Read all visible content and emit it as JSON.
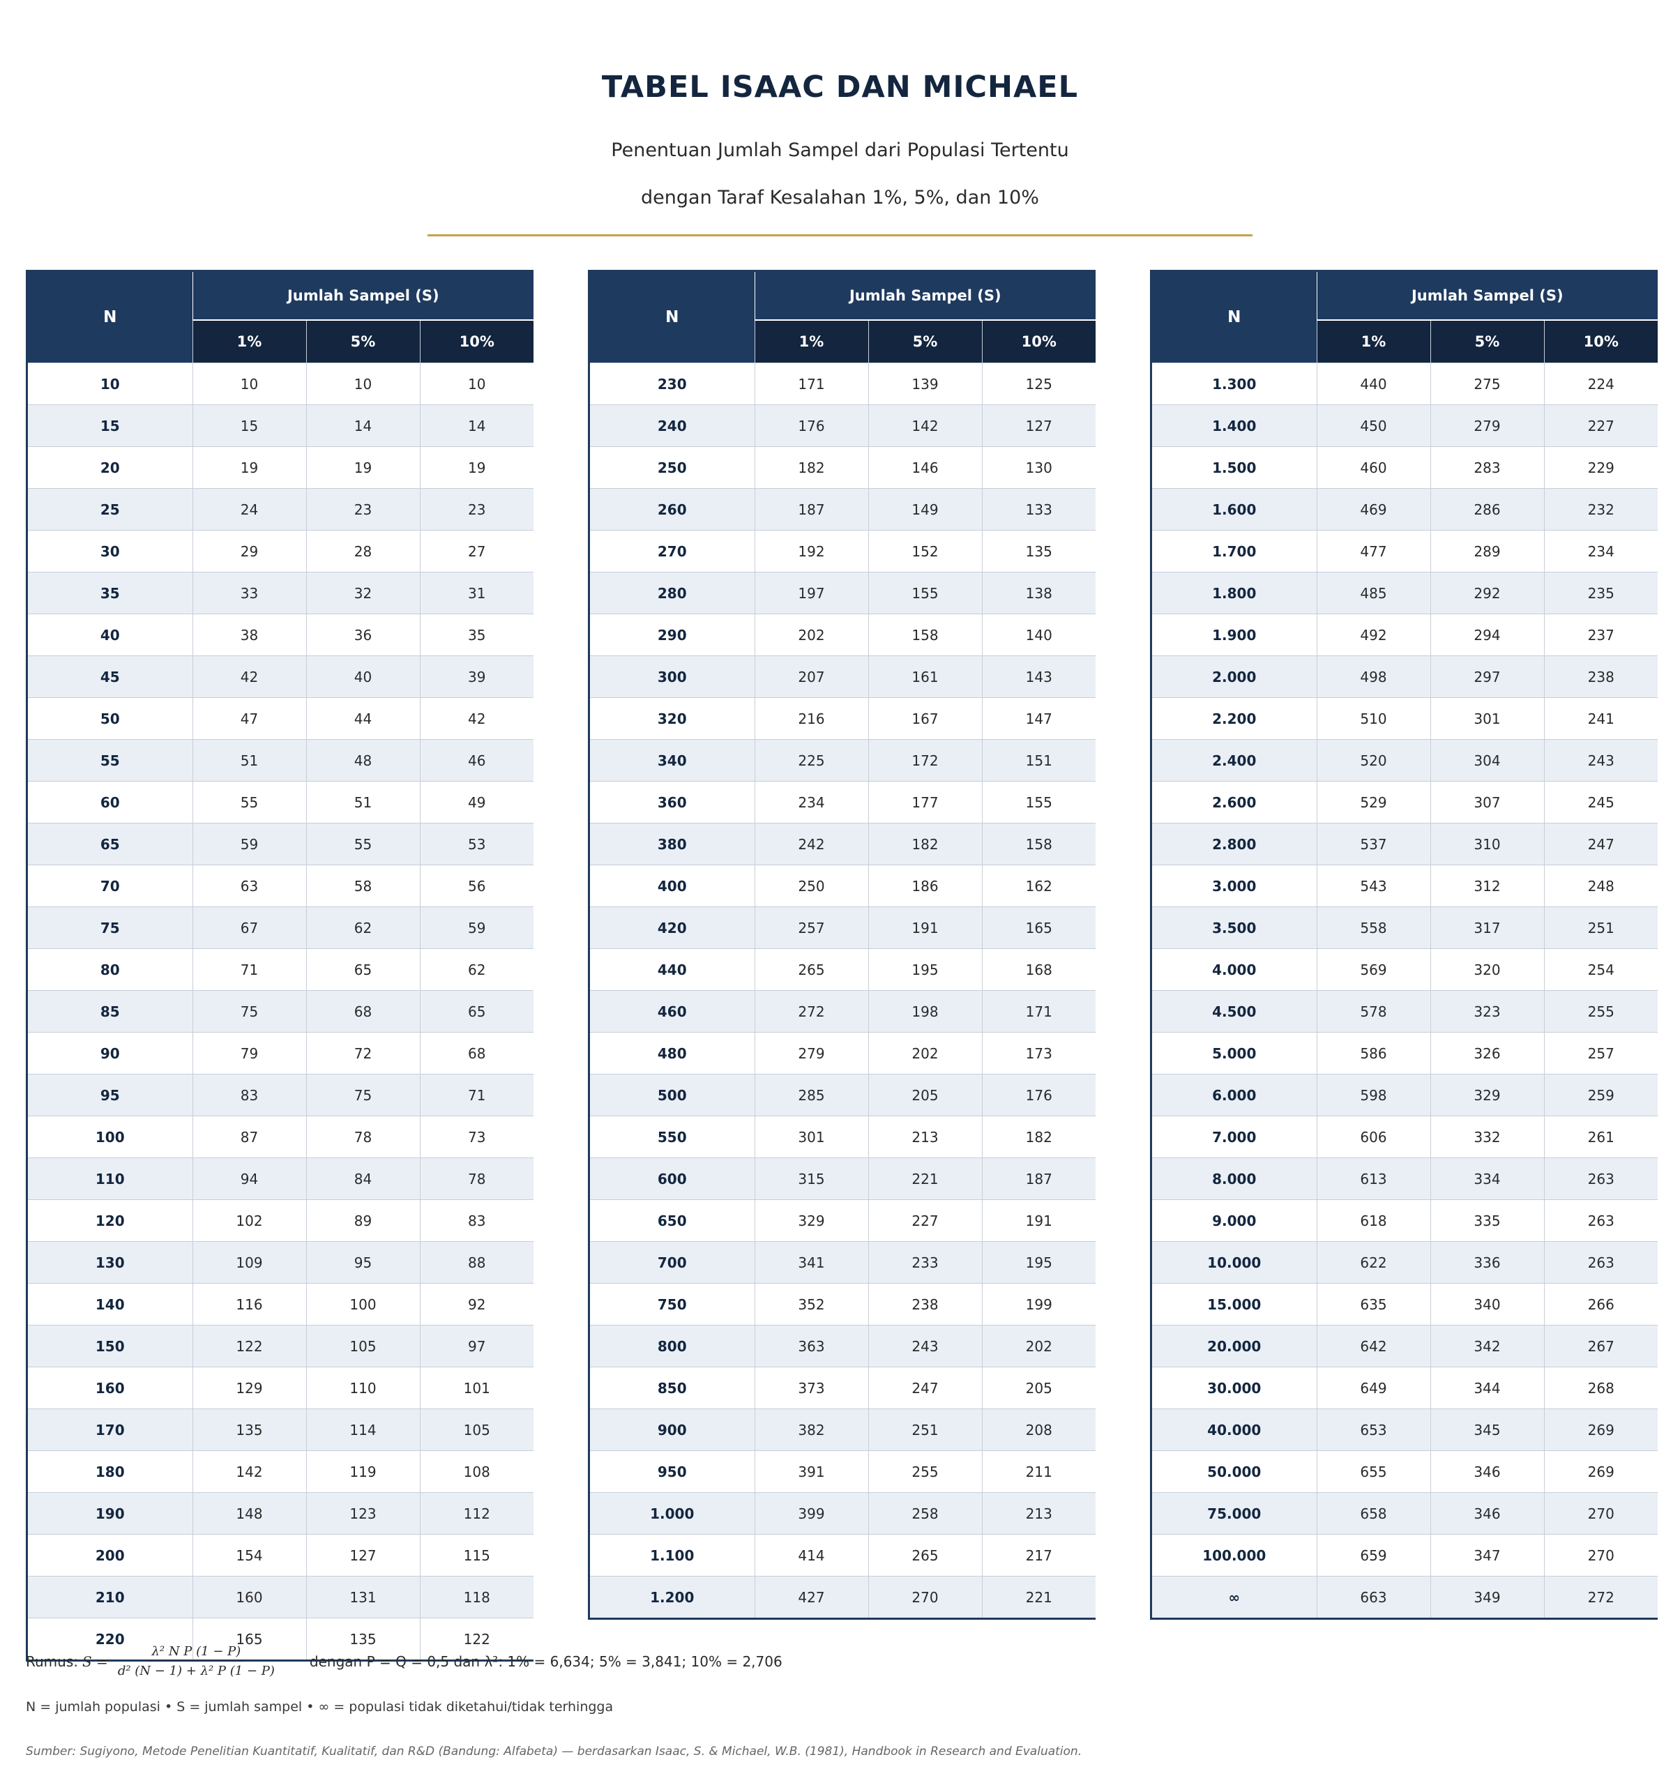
{
  "title": "TABEL ISAAC DAN MICHAEL",
  "subtitle_1": "Penentuan Jumlah Sampel dari Populasi Tertentu",
  "subtitle_2": "dengan Taraf Kesalahan 1%, 5%, dan 10%",
  "accent_color": "#c9a04a",
  "header": {
    "n": "N",
    "group": "Jumlah Sampel (S)",
    "pct_1": "1%",
    "pct_5": "5%",
    "pct_10": "10%"
  },
  "tables": [
    {
      "rows": [
        [
          "10",
          "10",
          "10",
          "10"
        ],
        [
          "15",
          "15",
          "14",
          "14"
        ],
        [
          "20",
          "19",
          "19",
          "19"
        ],
        [
          "25",
          "24",
          "23",
          "23"
        ],
        [
          "30",
          "29",
          "28",
          "27"
        ],
        [
          "35",
          "33",
          "32",
          "31"
        ],
        [
          "40",
          "38",
          "36",
          "35"
        ],
        [
          "45",
          "42",
          "40",
          "39"
        ],
        [
          "50",
          "47",
          "44",
          "42"
        ],
        [
          "55",
          "51",
          "48",
          "46"
        ],
        [
          "60",
          "55",
          "51",
          "49"
        ],
        [
          "65",
          "59",
          "55",
          "53"
        ],
        [
          "70",
          "63",
          "58",
          "56"
        ],
        [
          "75",
          "67",
          "62",
          "59"
        ],
        [
          "80",
          "71",
          "65",
          "62"
        ],
        [
          "85",
          "75",
          "68",
          "65"
        ],
        [
          "90",
          "79",
          "72",
          "68"
        ],
        [
          "95",
          "83",
          "75",
          "71"
        ],
        [
          "100",
          "87",
          "78",
          "73"
        ],
        [
          "110",
          "94",
          "84",
          "78"
        ],
        [
          "120",
          "102",
          "89",
          "83"
        ],
        [
          "130",
          "109",
          "95",
          "88"
        ],
        [
          "140",
          "116",
          "100",
          "92"
        ],
        [
          "150",
          "122",
          "105",
          "97"
        ],
        [
          "160",
          "129",
          "110",
          "101"
        ],
        [
          "170",
          "135",
          "114",
          "105"
        ],
        [
          "180",
          "142",
          "119",
          "108"
        ],
        [
          "190",
          "148",
          "123",
          "112"
        ],
        [
          "200",
          "154",
          "127",
          "115"
        ],
        [
          "210",
          "160",
          "131",
          "118"
        ],
        [
          "220",
          "165",
          "135",
          "122"
        ]
      ]
    },
    {
      "rows": [
        [
          "230",
          "171",
          "139",
          "125"
        ],
        [
          "240",
          "176",
          "142",
          "127"
        ],
        [
          "250",
          "182",
          "146",
          "130"
        ],
        [
          "260",
          "187",
          "149",
          "133"
        ],
        [
          "270",
          "192",
          "152",
          "135"
        ],
        [
          "280",
          "197",
          "155",
          "138"
        ],
        [
          "290",
          "202",
          "158",
          "140"
        ],
        [
          "300",
          "207",
          "161",
          "143"
        ],
        [
          "320",
          "216",
          "167",
          "147"
        ],
        [
          "340",
          "225",
          "172",
          "151"
        ],
        [
          "360",
          "234",
          "177",
          "155"
        ],
        [
          "380",
          "242",
          "182",
          "158"
        ],
        [
          "400",
          "250",
          "186",
          "162"
        ],
        [
          "420",
          "257",
          "191",
          "165"
        ],
        [
          "440",
          "265",
          "195",
          "168"
        ],
        [
          "460",
          "272",
          "198",
          "171"
        ],
        [
          "480",
          "279",
          "202",
          "173"
        ],
        [
          "500",
          "285",
          "205",
          "176"
        ],
        [
          "550",
          "301",
          "213",
          "182"
        ],
        [
          "600",
          "315",
          "221",
          "187"
        ],
        [
          "650",
          "329",
          "227",
          "191"
        ],
        [
          "700",
          "341",
          "233",
          "195"
        ],
        [
          "750",
          "352",
          "238",
          "199"
        ],
        [
          "800",
          "363",
          "243",
          "202"
        ],
        [
          "850",
          "373",
          "247",
          "205"
        ],
        [
          "900",
          "382",
          "251",
          "208"
        ],
        [
          "950",
          "391",
          "255",
          "211"
        ],
        [
          "1.000",
          "399",
          "258",
          "213"
        ],
        [
          "1.100",
          "414",
          "265",
          "217"
        ],
        [
          "1.200",
          "427",
          "270",
          "221"
        ]
      ]
    },
    {
      "rows": [
        [
          "1.300",
          "440",
          "275",
          "224"
        ],
        [
          "1.400",
          "450",
          "279",
          "227"
        ],
        [
          "1.500",
          "460",
          "283",
          "229"
        ],
        [
          "1.600",
          "469",
          "286",
          "232"
        ],
        [
          "1.700",
          "477",
          "289",
          "234"
        ],
        [
          "1.800",
          "485",
          "292",
          "235"
        ],
        [
          "1.900",
          "492",
          "294",
          "237"
        ],
        [
          "2.000",
          "498",
          "297",
          "238"
        ],
        [
          "2.200",
          "510",
          "301",
          "241"
        ],
        [
          "2.400",
          "520",
          "304",
          "243"
        ],
        [
          "2.600",
          "529",
          "307",
          "245"
        ],
        [
          "2.800",
          "537",
          "310",
          "247"
        ],
        [
          "3.000",
          "543",
          "312",
          "248"
        ],
        [
          "3.500",
          "558",
          "317",
          "251"
        ],
        [
          "4.000",
          "569",
          "320",
          "254"
        ],
        [
          "4.500",
          "578",
          "323",
          "255"
        ],
        [
          "5.000",
          "586",
          "326",
          "257"
        ],
        [
          "6.000",
          "598",
          "329",
          "259"
        ],
        [
          "7.000",
          "606",
          "332",
          "261"
        ],
        [
          "8.000",
          "613",
          "334",
          "263"
        ],
        [
          "9.000",
          "618",
          "335",
          "263"
        ],
        [
          "10.000",
          "622",
          "336",
          "263"
        ],
        [
          "15.000",
          "635",
          "340",
          "266"
        ],
        [
          "20.000",
          "642",
          "342",
          "267"
        ],
        [
          "30.000",
          "649",
          "344",
          "268"
        ],
        [
          "40.000",
          "653",
          "345",
          "269"
        ],
        [
          "50.000",
          "655",
          "346",
          "269"
        ],
        [
          "75.000",
          "658",
          "346",
          "270"
        ],
        [
          "100.000",
          "659",
          "347",
          "270"
        ],
        [
          "∞",
          "663",
          "349",
          "272"
        ]
      ]
    }
  ],
  "formula": {
    "prefix": "Rumus:",
    "lhs": "S =",
    "numerator": "λ² N P (1 − P)",
    "denominator": "d² (N − 1) + λ² P (1 − P)",
    "conditions": "dengan  P = Q = 0,5   dan   λ²: 1% = 6,634;  5% = 3,841;  10% = 2,706"
  },
  "legend": "N = jumlah populasi   •   S = jumlah sampel   •   ∞ = populasi tidak diketahui/tidak terhingga",
  "source": "Sumber: Sugiyono, Metode Penelitian Kuantitatif, Kualitatif, dan R&D (Bandung: Alfabeta) — berdasarkan Isaac, S. & Michael, W.B. (1981), Handbook in Research and Evaluation."
}
